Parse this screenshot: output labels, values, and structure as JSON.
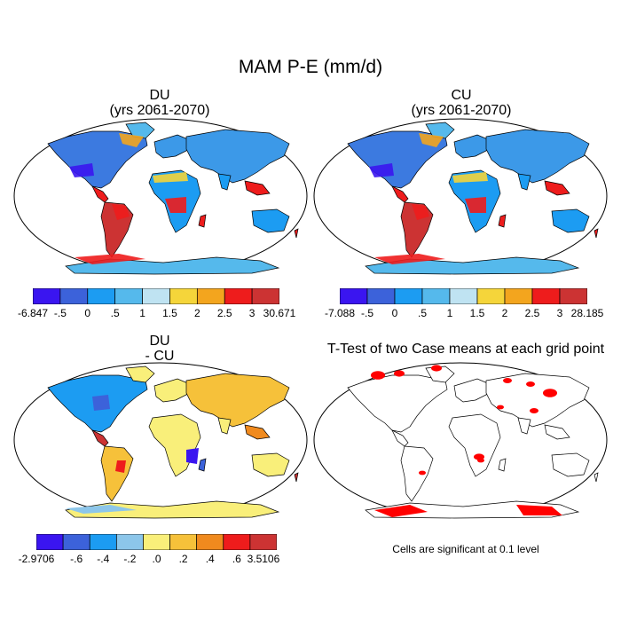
{
  "main_title": "MAM P-E (mm/d)",
  "panels": [
    {
      "id": "du",
      "title_line1": "DU",
      "title_line2": "(yrs 2061-2070)"
    },
    {
      "id": "cu",
      "title_line1": "CU",
      "title_line2": "(yrs 2061-2070)"
    },
    {
      "id": "diff",
      "title_line1": "DU",
      "title_line2": "- CU"
    },
    {
      "id": "ttest",
      "title_line1": "T-Test of two Case means at each grid point",
      "title_line2": ""
    }
  ],
  "colorbars": {
    "du": {
      "colors": [
        "#3a15f0",
        "#3c62da",
        "#1c9cf2",
        "#55b9ec",
        "#bfe3f2",
        "#f5d53a",
        "#f3a51e",
        "#ee1c1c",
        "#cc3333"
      ],
      "labels": [
        "-6.847",
        "-.5",
        "0",
        ".5",
        "1",
        "1.5",
        "2",
        "2.5",
        "3",
        "30.671"
      ]
    },
    "cu": {
      "colors": [
        "#3a15f0",
        "#3c62da",
        "#1c9cf2",
        "#55b9ec",
        "#bfe3f2",
        "#f5d53a",
        "#f3a51e",
        "#ee1c1c",
        "#cc3333"
      ],
      "labels": [
        "-7.088",
        "-.5",
        "0",
        ".5",
        "1",
        "1.5",
        "2",
        "2.5",
        "3",
        "28.185"
      ]
    },
    "diff": {
      "colors": [
        "#3a15f0",
        "#3c62da",
        "#1c9cf2",
        "#8cc6ea",
        "#f9ef7a",
        "#f6c13a",
        "#f08a1e",
        "#ee1c1c",
        "#cc3333"
      ],
      "labels": [
        "-2.9706",
        "-.6",
        "-.4",
        "-.2",
        ".0",
        ".2",
        ".4",
        ".6",
        "3.5106"
      ]
    }
  },
  "significance_note": "Cells are significant at 0.1 level",
  "colors": {
    "land_base": "#3c99e8",
    "significant": "#ff0000",
    "outline": "#000000"
  }
}
